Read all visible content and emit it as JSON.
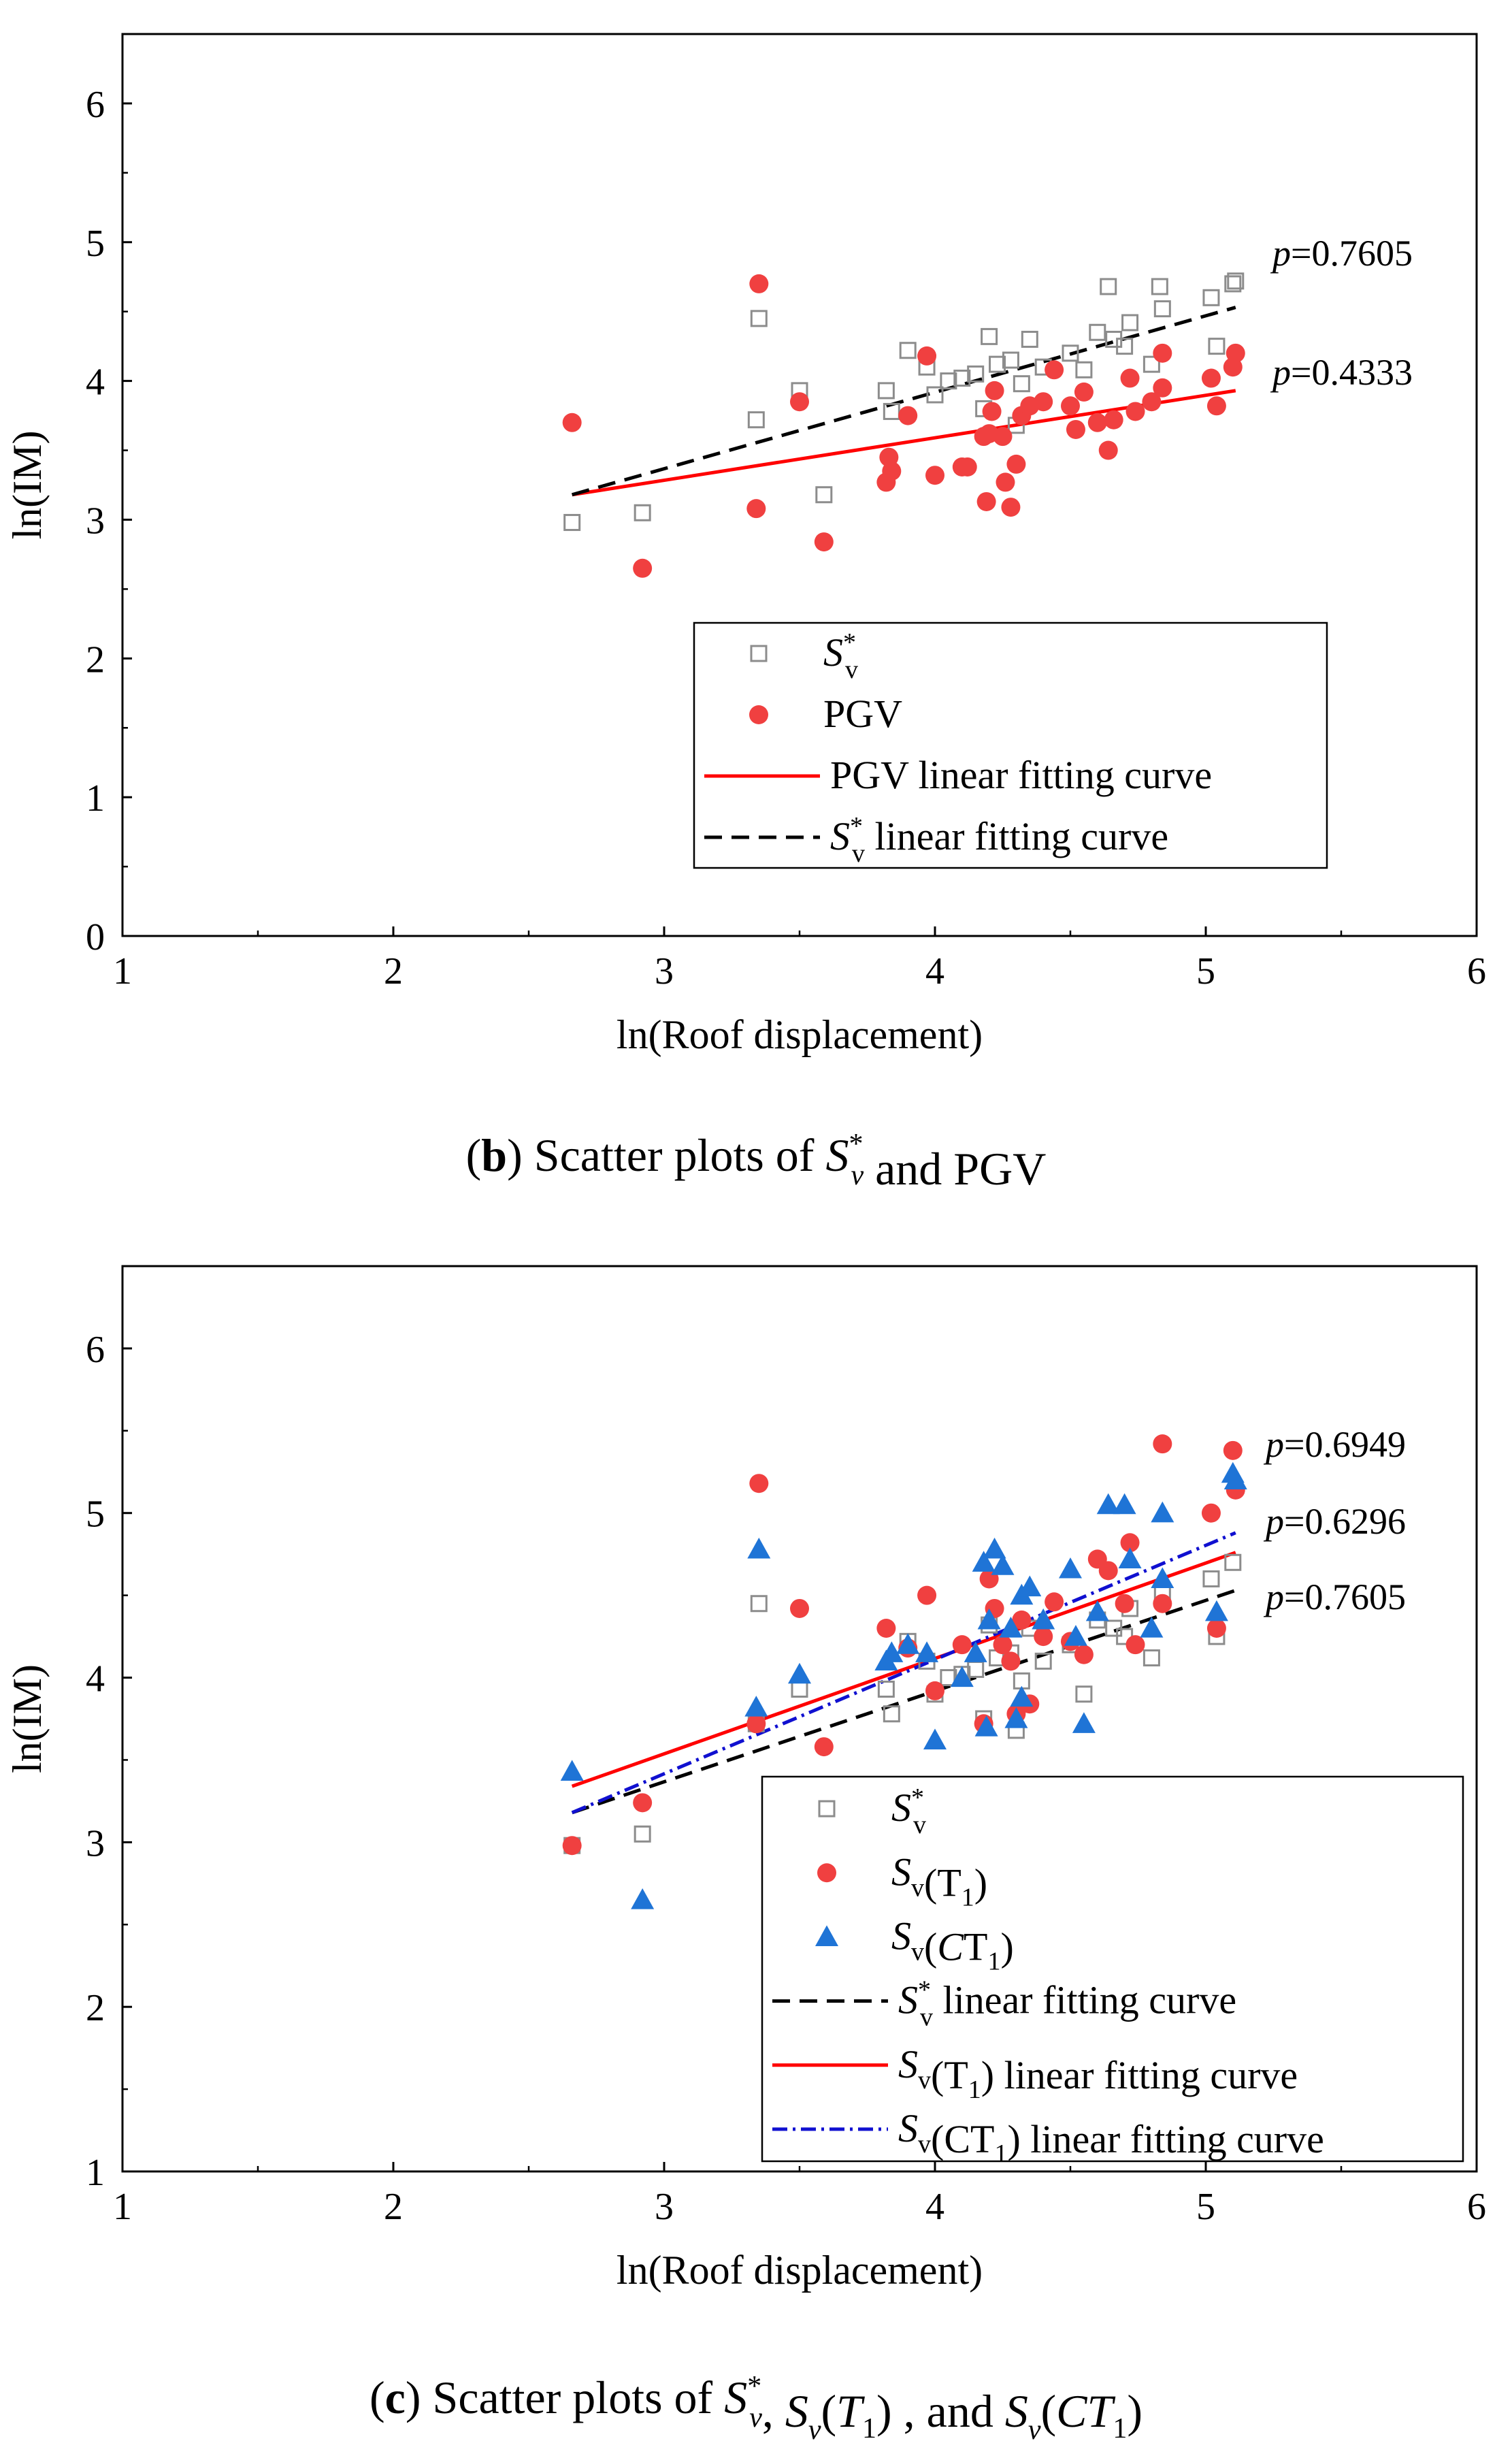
{
  "colors": {
    "sv_star": "#8c8c8c",
    "pgv": "#f04040",
    "sv_t1": "#f04040",
    "sv_ct1": "#1f74d6",
    "fit_sv_star": "#000000",
    "fit_pgv": "#ff0000",
    "fit_sv_t1": "#ff0000",
    "fit_sv_ct1": "#1010d0"
  },
  "chart_data": [
    {
      "type": "scatter",
      "panel": "b",
      "caption": {
        "label": "b",
        "text": "Scatter plots of",
        "symbol": "S",
        "sup": "*",
        "sub": "v",
        "text2": "and PGV"
      },
      "xlabel": "ln(Roof displacement)",
      "ylabel": "ln(IM)",
      "xlim": [
        1,
        6
      ],
      "ylim": [
        0,
        6.5
      ],
      "xticks": [
        1,
        2,
        3,
        4,
        5,
        6
      ],
      "yticks": [
        0,
        1,
        2,
        3,
        4,
        5,
        6
      ],
      "grid": false,
      "legend_position": "bottom-right",
      "series": [
        {
          "name": "S_v*",
          "legend": {
            "symbol": "S",
            "sup": "*",
            "sub": "v",
            "suffix": ""
          },
          "marker": "open-square",
          "color_key": "sv_star",
          "points": [
            [
              2.66,
              2.98
            ],
            [
              2.92,
              3.05
            ],
            [
              3.34,
              3.72
            ],
            [
              3.35,
              4.45
            ],
            [
              3.5,
              3.93
            ],
            [
              3.59,
              3.18
            ],
            [
              3.82,
              3.93
            ],
            [
              3.84,
              3.78
            ],
            [
              3.9,
              4.22
            ],
            [
              3.97,
              4.1
            ],
            [
              4.0,
              3.9
            ],
            [
              4.05,
              4.0
            ],
            [
              4.1,
              4.02
            ],
            [
              4.15,
              4.05
            ],
            [
              4.18,
              3.8
            ],
            [
              4.2,
              4.32
            ],
            [
              4.23,
              4.12
            ],
            [
              4.28,
              4.15
            ],
            [
              4.3,
              3.68
            ],
            [
              4.32,
              3.98
            ],
            [
              4.35,
              4.3
            ],
            [
              4.4,
              4.1
            ],
            [
              4.5,
              4.2
            ],
            [
              4.55,
              4.08
            ],
            [
              4.6,
              4.35
            ],
            [
              4.64,
              4.68
            ],
            [
              4.66,
              4.3
            ],
            [
              4.7,
              4.25
            ],
            [
              4.72,
              4.42
            ],
            [
              4.8,
              4.12
            ],
            [
              4.83,
              4.68
            ],
            [
              4.84,
              4.52
            ],
            [
              5.02,
              4.6
            ],
            [
              5.04,
              4.25
            ],
            [
              5.1,
              4.7
            ],
            [
              5.11,
              4.72
            ]
          ]
        },
        {
          "name": "PGV",
          "legend": {
            "text": "PGV"
          },
          "marker": "filled-circle",
          "color_key": "pgv",
          "points": [
            [
              2.66,
              3.7
            ],
            [
              2.92,
              2.65
            ],
            [
              3.34,
              3.08
            ],
            [
              3.35,
              4.7
            ],
            [
              3.5,
              3.85
            ],
            [
              3.59,
              2.84
            ],
            [
              3.82,
              3.27
            ],
            [
              3.83,
              3.45
            ],
            [
              3.84,
              3.35
            ],
            [
              3.9,
              3.75
            ],
            [
              3.97,
              4.18
            ],
            [
              4.0,
              3.32
            ],
            [
              4.1,
              3.38
            ],
            [
              4.12,
              3.38
            ],
            [
              4.18,
              3.6
            ],
            [
              4.19,
              3.13
            ],
            [
              4.2,
              3.62
            ],
            [
              4.21,
              3.78
            ],
            [
              4.22,
              3.93
            ],
            [
              4.25,
              3.6
            ],
            [
              4.26,
              3.27
            ],
            [
              4.28,
              3.09
            ],
            [
              4.3,
              3.4
            ],
            [
              4.32,
              3.75
            ],
            [
              4.35,
              3.82
            ],
            [
              4.4,
              3.85
            ],
            [
              4.44,
              4.08
            ],
            [
              4.5,
              3.82
            ],
            [
              4.52,
              3.65
            ],
            [
              4.55,
              3.92
            ],
            [
              4.6,
              3.7
            ],
            [
              4.64,
              3.5
            ],
            [
              4.66,
              3.72
            ],
            [
              4.72,
              4.02
            ],
            [
              4.74,
              3.78
            ],
            [
              4.8,
              3.85
            ],
            [
              4.84,
              3.95
            ],
            [
              4.84,
              4.2
            ],
            [
              5.02,
              4.02
            ],
            [
              5.04,
              3.82
            ],
            [
              5.1,
              4.1
            ],
            [
              5.11,
              4.2
            ]
          ]
        }
      ],
      "fits": [
        {
          "name": "PGV linear fitting curve",
          "legend": {
            "text": "PGV linear fitting curve"
          },
          "style": "solid",
          "color_key": "fit_pgv",
          "x": [
            2.66,
            5.11
          ],
          "y": [
            3.18,
            3.93
          ]
        },
        {
          "name": "S_v* linear fitting curve",
          "legend": {
            "symbol": "S",
            "sup": "*",
            "sub": "v",
            "suffix": " linear fitting curve"
          },
          "style": "dash",
          "color_key": "fit_sv_star",
          "x": [
            2.66,
            5.11
          ],
          "y": [
            3.18,
            4.53
          ]
        }
      ],
      "annotations": [
        {
          "p_label": "p",
          "text": "=0.7605",
          "x": 5.25,
          "y": 4.75
        },
        {
          "p_label": "p",
          "text": "=0.4333",
          "x": 5.25,
          "y": 3.97
        }
      ]
    },
    {
      "type": "scatter",
      "panel": "c",
      "caption": {
        "label": "c",
        "text": "Scatter plots of",
        "symbol": "S",
        "sup": "*",
        "sub": "v",
        "text2": ",",
        "symbol2": "S",
        "sub2": "v",
        "arg2": "(T",
        "arg2sub": "1",
        "text3": ") , and",
        "symbol3": "S",
        "sub3": "v",
        "arg3": "(CT",
        "arg3sub": "1",
        "text4": ")"
      },
      "xlabel": "ln(Roof displacement)",
      "ylabel": "ln(IM)",
      "xlim": [
        1,
        6
      ],
      "ylim": [
        1,
        6.5
      ],
      "xticks": [
        1,
        2,
        3,
        4,
        5,
        6
      ],
      "yticks": [
        1,
        2,
        3,
        4,
        5,
        6
      ],
      "grid": false,
      "legend_position": "bottom-right",
      "series": [
        {
          "name": "S_v*",
          "legend": {
            "symbol": "S",
            "sup": "*",
            "sub": "v",
            "suffix": ""
          },
          "marker": "open-square",
          "color_key": "sv_star",
          "points": [
            [
              2.66,
              2.98
            ],
            [
              2.92,
              3.05
            ],
            [
              3.34,
              3.72
            ],
            [
              3.35,
              4.45
            ],
            [
              3.5,
              3.93
            ],
            [
              3.82,
              3.93
            ],
            [
              3.84,
              3.78
            ],
            [
              3.9,
              4.22
            ],
            [
              3.97,
              4.1
            ],
            [
              4.0,
              3.9
            ],
            [
              4.05,
              4.0
            ],
            [
              4.1,
              4.02
            ],
            [
              4.15,
              4.05
            ],
            [
              4.18,
              3.75
            ],
            [
              4.2,
              4.32
            ],
            [
              4.23,
              4.12
            ],
            [
              4.28,
              4.15
            ],
            [
              4.3,
              3.68
            ],
            [
              4.32,
              3.98
            ],
            [
              4.35,
              4.3
            ],
            [
              4.4,
              4.1
            ],
            [
              4.5,
              4.2
            ],
            [
              4.55,
              3.9
            ],
            [
              4.6,
              4.35
            ],
            [
              4.66,
              4.3
            ],
            [
              4.7,
              4.25
            ],
            [
              4.72,
              4.42
            ],
            [
              4.8,
              4.12
            ],
            [
              4.84,
              4.52
            ],
            [
              5.02,
              4.6
            ],
            [
              5.04,
              4.25
            ],
            [
              5.1,
              4.7
            ]
          ]
        },
        {
          "name": "S_v(T1)",
          "legend": {
            "symbol": "S",
            "sub": "v",
            "arg": "(T",
            "argsub": "1",
            "argclose": ")"
          },
          "marker": "filled-circle",
          "color_key": "sv_t1",
          "points": [
            [
              2.66,
              2.98
            ],
            [
              2.92,
              3.24
            ],
            [
              3.34,
              3.72
            ],
            [
              3.35,
              5.18
            ],
            [
              3.5,
              4.42
            ],
            [
              3.59,
              3.58
            ],
            [
              3.82,
              4.3
            ],
            [
              3.9,
              4.18
            ],
            [
              3.97,
              4.5
            ],
            [
              4.0,
              3.92
            ],
            [
              4.1,
              4.2
            ],
            [
              4.18,
              3.72
            ],
            [
              4.2,
              4.6
            ],
            [
              4.22,
              4.42
            ],
            [
              4.25,
              4.2
            ],
            [
              4.28,
              4.1
            ],
            [
              4.3,
              3.78
            ],
            [
              4.32,
              4.35
            ],
            [
              4.35,
              3.84
            ],
            [
              4.4,
              4.25
            ],
            [
              4.44,
              4.46
            ],
            [
              4.5,
              4.22
            ],
            [
              4.55,
              4.14
            ],
            [
              4.6,
              4.72
            ],
            [
              4.64,
              4.65
            ],
            [
              4.7,
              4.45
            ],
            [
              4.72,
              4.82
            ],
            [
              4.74,
              4.2
            ],
            [
              4.84,
              5.42
            ],
            [
              4.84,
              4.45
            ],
            [
              5.02,
              5.0
            ],
            [
              5.04,
              4.3
            ],
            [
              5.1,
              5.38
            ],
            [
              5.11,
              5.14
            ]
          ]
        },
        {
          "name": "S_v(CT1)",
          "legend": {
            "symbol": "S",
            "sub": "v",
            "arg": "(CT",
            "argsub": "1",
            "argclose": ")",
            "arg_italic_prefix": "C"
          },
          "marker": "filled-triangle",
          "color_key": "sv_ct1",
          "points": [
            [
              2.66,
              3.43
            ],
            [
              2.92,
              2.65
            ],
            [
              3.34,
              3.82
            ],
            [
              3.35,
              4.78
            ],
            [
              3.5,
              4.02
            ],
            [
              3.82,
              4.1
            ],
            [
              3.84,
              4.15
            ],
            [
              3.9,
              4.2
            ],
            [
              3.97,
              4.15
            ],
            [
              4.0,
              3.62
            ],
            [
              4.1,
              4.0
            ],
            [
              4.15,
              4.15
            ],
            [
              4.18,
              4.7
            ],
            [
              4.19,
              3.7
            ],
            [
              4.2,
              4.35
            ],
            [
              4.22,
              4.78
            ],
            [
              4.25,
              4.68
            ],
            [
              4.28,
              4.3
            ],
            [
              4.3,
              3.75
            ],
            [
              4.32,
              3.88
            ],
            [
              4.32,
              4.5
            ],
            [
              4.35,
              4.55
            ],
            [
              4.4,
              4.35
            ],
            [
              4.5,
              4.66
            ],
            [
              4.52,
              4.25
            ],
            [
              4.55,
              3.72
            ],
            [
              4.6,
              4.4
            ],
            [
              4.64,
              5.05
            ],
            [
              4.7,
              5.05
            ],
            [
              4.72,
              4.72
            ],
            [
              4.8,
              4.3
            ],
            [
              4.84,
              5.0
            ],
            [
              4.84,
              4.6
            ],
            [
              5.04,
              4.4
            ],
            [
              5.1,
              5.24
            ],
            [
              5.11,
              5.2
            ]
          ]
        }
      ],
      "fits": [
        {
          "name": "S_v* linear fitting curve",
          "legend": {
            "symbol": "S",
            "sup": "*",
            "sub": "v",
            "suffix": "  linear fitting curve"
          },
          "style": "dash",
          "color_key": "fit_sv_star",
          "x": [
            2.66,
            5.11
          ],
          "y": [
            3.18,
            4.53
          ]
        },
        {
          "name": "S_v(T1) linear fitting curve",
          "legend": {
            "symbol": "S",
            "sub": "v",
            "arg": "(T",
            "argsub": "1",
            "argclose": ")",
            "suffix": "  linear fitting curve"
          },
          "style": "solid",
          "color_key": "fit_sv_t1",
          "x": [
            2.66,
            5.11
          ],
          "y": [
            3.34,
            4.76
          ]
        },
        {
          "name": "S_v(CT1) linear fitting curve",
          "legend": {
            "symbol": "S",
            "sub": "v",
            "arg": "(CT",
            "argsub": "1",
            "argclose": ")",
            "suffix": "  linear fitting curve"
          },
          "style": "dashdot",
          "color_key": "fit_sv_ct1",
          "x": [
            2.66,
            5.11
          ],
          "y": [
            3.18,
            4.88
          ]
        }
      ],
      "annotations": [
        {
          "p_label": "p",
          "text": "=0.6949",
          "x": 5.25,
          "y": 5.32
        },
        {
          "p_label": "p",
          "text": "=0.6296",
          "x": 5.2,
          "y": 4.87
        },
        {
          "p_label": "p",
          "text": "=0.7605",
          "x": 5.2,
          "y": 4.4
        }
      ]
    }
  ]
}
